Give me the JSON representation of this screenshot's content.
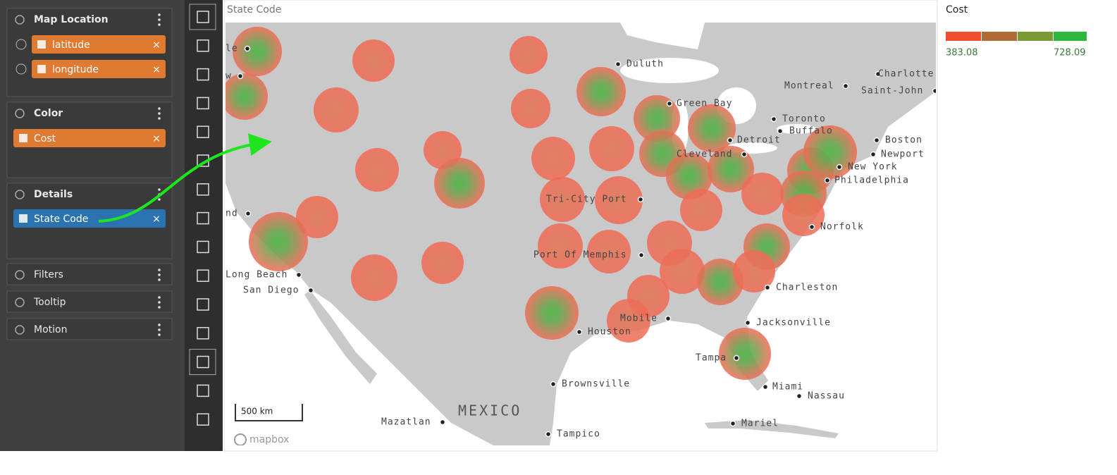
{
  "sidebar": {
    "sections": [
      {
        "title": "Map Location",
        "fields": [
          "latitude",
          "longitude"
        ]
      },
      {
        "title": "Color",
        "fields": [
          "Cost"
        ]
      },
      {
        "title": "Details",
        "fields": [
          "State Code"
        ]
      },
      {
        "title": "Filters",
        "fields": []
      },
      {
        "title": "Tooltip",
        "fields": []
      },
      {
        "title": "Motion",
        "fields": []
      }
    ]
  },
  "map": {
    "title": "State Code",
    "region_label": "MEXICO",
    "scale_label": "500 km",
    "attribution": "mapbox",
    "cities": [
      "le",
      "w",
      "nd",
      "Duluth",
      "Montreal",
      "Charlotte",
      "Saint-John",
      "Green Bay",
      "Toronto",
      "Buffalo",
      "Boston",
      "Detroit",
      "Newport",
      "Cleveland",
      "New York",
      "Philadelphia",
      "Tri-City Port",
      "Norfolk",
      "Port Of Memphis",
      "Long Beach",
      "San Diego",
      "Charleston",
      "Mobile",
      "Jacksonville",
      "Houston",
      "Tampa",
      "Miami",
      "Nassau",
      "Brownsville",
      "Mazatlan",
      "Tampico",
      "Mariel"
    ]
  },
  "legend": {
    "title": "Cost",
    "min_label": "383.08",
    "max_label": "728.09"
  }
}
